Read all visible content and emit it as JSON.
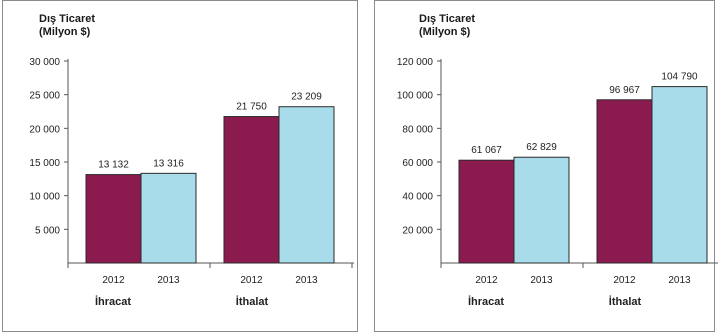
{
  "colors": {
    "series_2012": "#8b1a4f",
    "series_2013": "#a8dcea",
    "axis": "#555555",
    "edge": "#2a2a2a"
  },
  "chart_data": [
    {
      "type": "bar",
      "title": "Dış Ticaret",
      "unit_label": "(Milyon $)",
      "groups": [
        "İhracat",
        "İthalat"
      ],
      "categories": [
        "2012",
        "2013",
        "2012",
        "2013"
      ],
      "values": [
        13132,
        13316,
        21750,
        23209
      ],
      "data_labels": [
        "13 132",
        "13 316",
        "21 750",
        "23 209"
      ],
      "ylim": [
        0,
        30000
      ],
      "yticks": [
        5000,
        10000,
        15000,
        20000,
        25000,
        30000
      ],
      "ytick_labels": [
        "5 000",
        "10 000",
        "15 000",
        "20 000",
        "25 000",
        "30 000"
      ],
      "grid": false,
      "legend": "none"
    },
    {
      "type": "bar",
      "title": "Dış Ticaret",
      "unit_label": "(Milyon $)",
      "groups": [
        "İhracat",
        "İthalat"
      ],
      "categories": [
        "2012",
        "2013",
        "2012",
        "2013"
      ],
      "values": [
        61067,
        62829,
        96967,
        104790
      ],
      "data_labels": [
        "61 067",
        "62 829",
        "96 967",
        "104 790"
      ],
      "ylim": [
        0,
        120000
      ],
      "yticks": [
        20000,
        40000,
        60000,
        80000,
        100000,
        120000
      ],
      "ytick_labels": [
        "20 000",
        "40 000",
        "60 000",
        "80 000",
        "100 000",
        "120 000"
      ],
      "grid": false,
      "legend": "none"
    }
  ]
}
